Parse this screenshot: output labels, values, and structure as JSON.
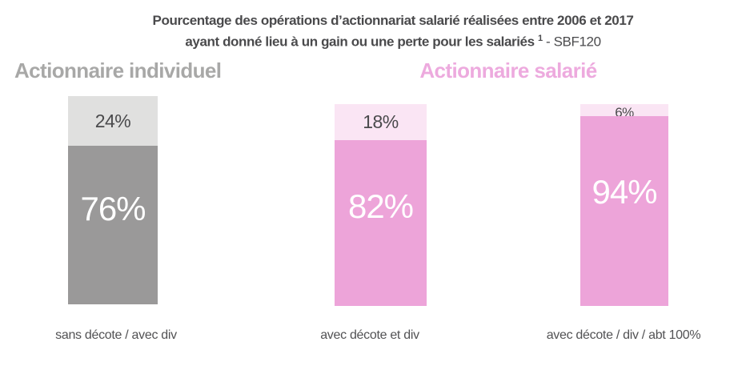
{
  "title": {
    "line1": "Pourcentage des opérations d’actionnariat salarié réalisées entre 2006 et 2017",
    "line2_bold": "ayant donné lieu à un gain ou une perte pour les salariés",
    "line2_sup": "1",
    "line2_regular": " - SBF120"
  },
  "group_headings": [
    {
      "id": "individuel",
      "label": "Actionnaire individuel",
      "color": "#a8a8a7"
    },
    {
      "id": "salarie",
      "label": "Actionnaire salarié",
      "color": "#edaade"
    }
  ],
  "chart_data": {
    "type": "bar",
    "subtype": "stacked-100-percent",
    "title": "Pourcentage des opérations d’actionnariat salarié réalisées entre 2006 et 2017 ayant donné lieu à un gain ou une perte pour les salariés ¹ - SBF120",
    "unit": "%",
    "ylim": [
      0,
      100
    ],
    "grid": false,
    "legend": false,
    "categories": [
      "sans décote / avec div",
      "avec décote et div",
      "avec décote / div / abt 100%"
    ],
    "series": [
      {
        "name": "gain",
        "values": [
          76,
          82,
          94
        ]
      },
      {
        "name": "perte",
        "values": [
          24,
          18,
          6
        ]
      }
    ],
    "bars": [
      {
        "group": "Actionnaire individuel",
        "category": "sans décote / avec div",
        "gain": 76,
        "perte": 24,
        "gain_label": "76%",
        "perte_label": "24%",
        "colors": {
          "gain": "#9a9999",
          "perte": "#e0e0df"
        }
      },
      {
        "group": "Actionnaire salarié",
        "category": "avec décote et div",
        "gain": 82,
        "perte": 18,
        "gain_label": "82%",
        "perte_label": "18%",
        "colors": {
          "gain": "#eda4d9",
          "perte": "#fae5f4"
        }
      },
      {
        "group": "Actionnaire salarié",
        "category": "avec décote / div / abt 100%",
        "gain": 94,
        "perte": 6,
        "gain_label": "94%",
        "perte_label": "6%",
        "colors": {
          "gain": "#eda4d9",
          "perte": "#fae5f4"
        }
      }
    ]
  }
}
